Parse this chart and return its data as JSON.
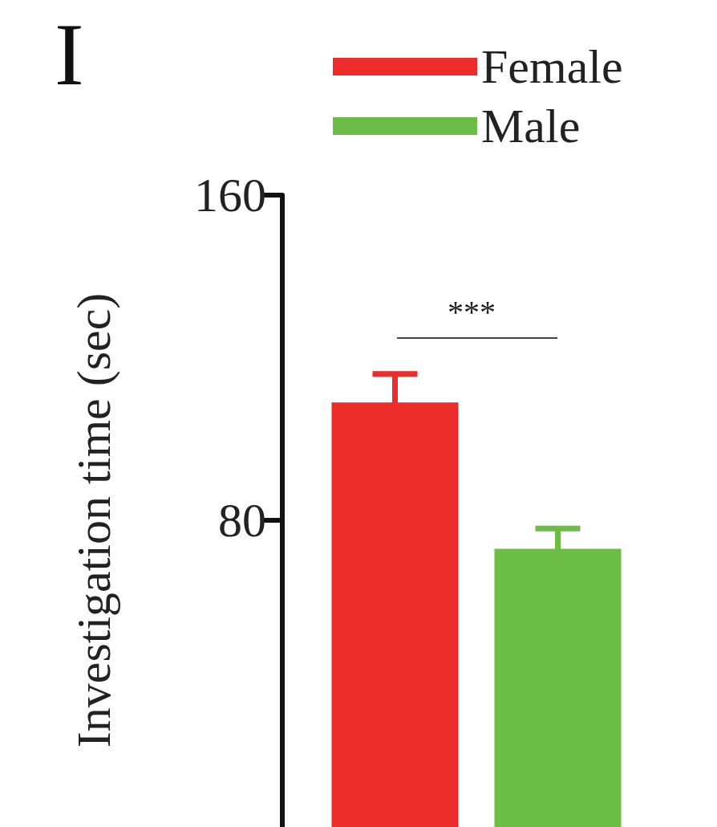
{
  "chart_data": {
    "type": "bar",
    "title": "I",
    "ylabel": "Investigation time (sec)",
    "categories": [
      null
    ],
    "series": [
      {
        "name": "Female",
        "color": "#ec2b2b",
        "values": [
          109
        ],
        "errors": [
          7
        ]
      },
      {
        "name": "Male",
        "color": "#6bbd45",
        "values": [
          73
        ],
        "errors": [
          5
        ]
      }
    ],
    "ylim": [
      0,
      160
    ],
    "yticks": [
      80,
      160
    ],
    "legend": "top right",
    "grid": false,
    "annotations": [
      "***"
    ]
  }
}
